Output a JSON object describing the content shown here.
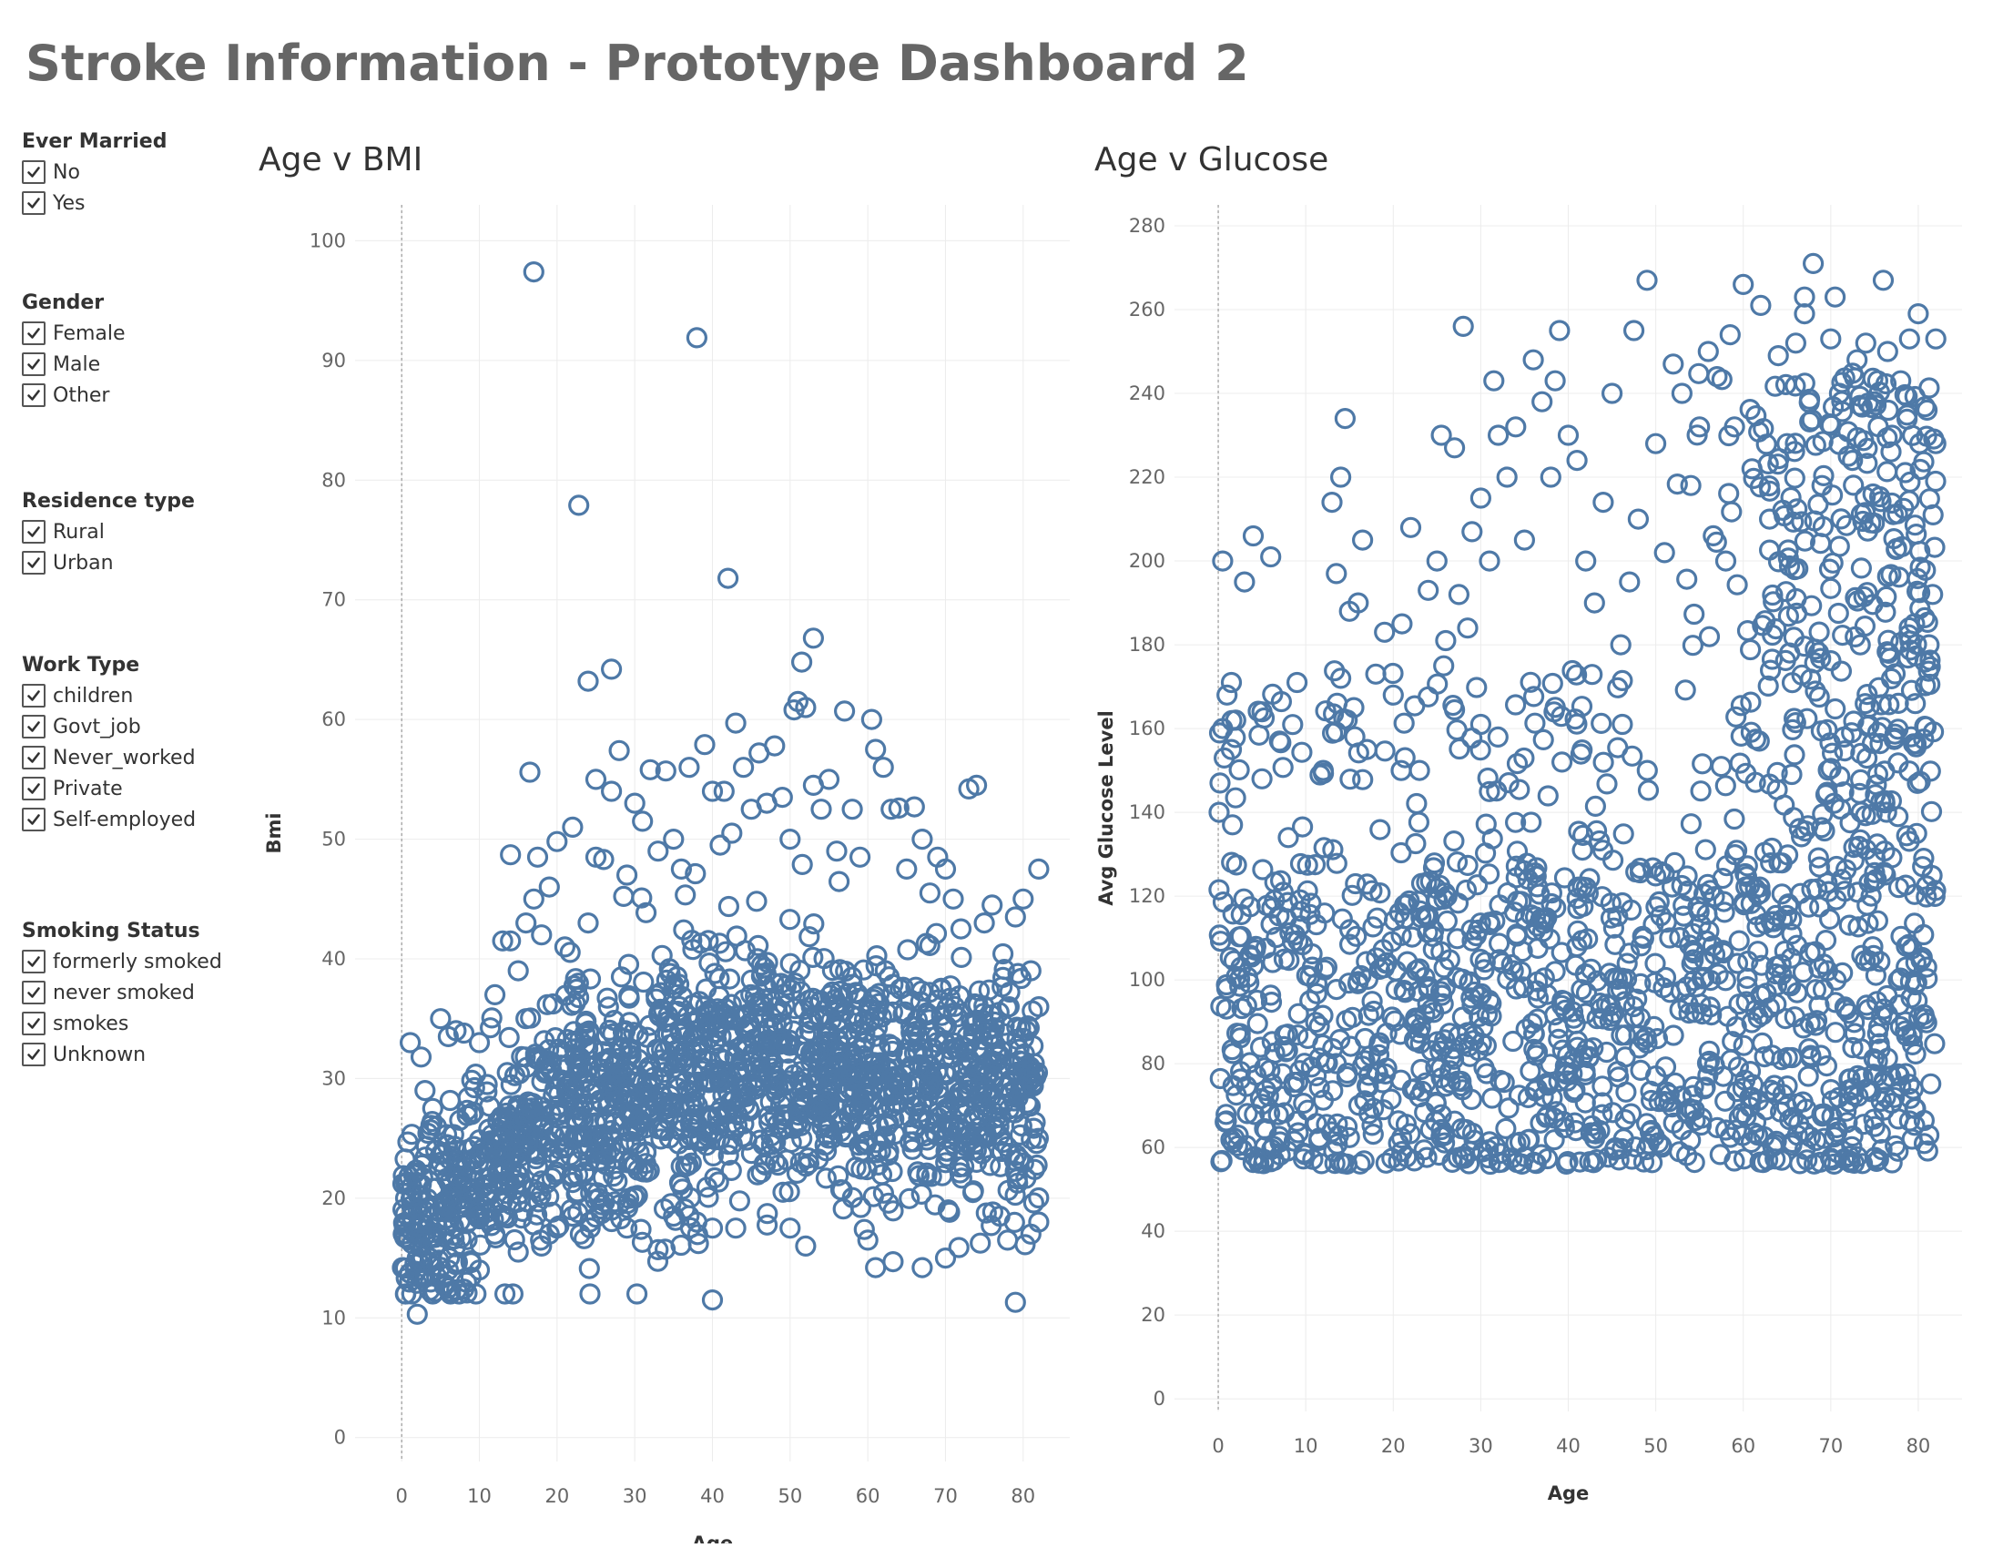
{
  "dashboard": {
    "title": "Stroke Information - Prototype Dashboard 2"
  },
  "colors": {
    "mark": "#4e79a7",
    "grid": "#ececec",
    "zero_line": "#9a9a9a",
    "text": "#333333",
    "axis_text": "#666666",
    "title_text": "#666666"
  },
  "icons": {
    "checkbox": "checkmark-icon"
  },
  "filters": {
    "ever_married": {
      "title": "Ever Married",
      "options": [
        {
          "label": "No",
          "checked": true
        },
        {
          "label": "Yes",
          "checked": true
        }
      ]
    },
    "gender": {
      "title": "Gender",
      "options": [
        {
          "label": "Female",
          "checked": true
        },
        {
          "label": "Male",
          "checked": true
        },
        {
          "label": "Other",
          "checked": true
        }
      ]
    },
    "residence_type": {
      "title": "Residence type",
      "options": [
        {
          "label": "Rural",
          "checked": true
        },
        {
          "label": "Urban",
          "checked": true
        }
      ]
    },
    "work_type": {
      "title": "Work Type",
      "options": [
        {
          "label": "children",
          "checked": true
        },
        {
          "label": "Govt_job",
          "checked": true
        },
        {
          "label": "Never_worked",
          "checked": true
        },
        {
          "label": "Private",
          "checked": true
        },
        {
          "label": "Self-employed",
          "checked": true
        }
      ]
    },
    "smoking_status": {
      "title": "Smoking Status",
      "options": [
        {
          "label": "formerly smoked",
          "checked": true
        },
        {
          "label": "never smoked",
          "checked": true
        },
        {
          "label": "smokes",
          "checked": true
        },
        {
          "label": "Unknown",
          "checked": true
        }
      ]
    }
  },
  "chart_data": [
    {
      "type": "scatter",
      "title": "Age v BMI",
      "xlabel": "Age",
      "ylabel": "Bmi",
      "xlim": [
        -6,
        86
      ],
      "ylim": [
        -2,
        103
      ],
      "xticks": [
        0,
        10,
        20,
        30,
        40,
        50,
        60,
        70,
        80
      ],
      "yticks": [
        0,
        10,
        20,
        30,
        40,
        50,
        60,
        70,
        80,
        90,
        100
      ],
      "grid": true,
      "marker": "hollow circle",
      "points": [
        [
          0.1,
          14.2
        ],
        [
          0.2,
          17.0
        ],
        [
          0.5,
          20.0
        ],
        [
          0.8,
          24.7
        ],
        [
          1.0,
          13.0
        ],
        [
          1.1,
          33.0
        ],
        [
          1.3,
          18.5
        ],
        [
          1.5,
          22.0
        ],
        [
          2.0,
          10.3
        ],
        [
          2.0,
          15.0
        ],
        [
          2.5,
          31.8
        ],
        [
          3.0,
          13.5
        ],
        [
          3.0,
          29.0
        ],
        [
          4.0,
          12.0
        ],
        [
          4.0,
          27.5
        ],
        [
          5.0,
          35.0
        ],
        [
          5.0,
          23.0
        ],
        [
          6.0,
          33.5
        ],
        [
          6.0,
          14.0
        ],
        [
          7.0,
          34.0
        ],
        [
          7.0,
          24.0
        ],
        [
          8.0,
          12.4
        ],
        [
          8.0,
          33.8
        ],
        [
          9.0,
          27.0
        ],
        [
          10.0,
          33.0
        ],
        [
          10.0,
          14.0
        ],
        [
          11.0,
          29.5
        ],
        [
          12.0,
          37.0
        ],
        [
          12.0,
          17.0
        ],
        [
          13.0,
          41.5
        ],
        [
          13.0,
          25.0
        ],
        [
          14.0,
          48.7
        ],
        [
          14.0,
          41.5
        ],
        [
          15.0,
          39.0
        ],
        [
          15.0,
          15.5
        ],
        [
          16.0,
          43.0
        ],
        [
          16.0,
          35.0
        ],
        [
          16.5,
          55.6
        ],
        [
          17.0,
          97.4
        ],
        [
          17.0,
          45.0
        ],
        [
          17.5,
          48.5
        ],
        [
          18.0,
          16.0
        ],
        [
          18.0,
          42.0
        ],
        [
          19.0,
          46.0
        ],
        [
          19.0,
          17.0
        ],
        [
          20.0,
          49.8
        ],
        [
          20.0,
          17.5
        ],
        [
          21.0,
          41.0
        ],
        [
          22.0,
          51.0
        ],
        [
          22.0,
          18.5
        ],
        [
          22.8,
          77.9
        ],
        [
          23.0,
          17.0
        ],
        [
          24.0,
          63.2
        ],
        [
          24.0,
          43.0
        ],
        [
          25.0,
          55.0
        ],
        [
          25.0,
          48.5
        ],
        [
          26.0,
          48.3
        ],
        [
          27.0,
          64.2
        ],
        [
          27.0,
          54.0
        ],
        [
          27.0,
          19.0
        ],
        [
          28.0,
          57.4
        ],
        [
          29.0,
          47.0
        ],
        [
          29.0,
          17.5
        ],
        [
          30.0,
          53.0
        ],
        [
          31.0,
          51.5
        ],
        [
          32.0,
          55.8
        ],
        [
          33.0,
          15.7
        ],
        [
          33.0,
          49.0
        ],
        [
          34.0,
          55.7
        ],
        [
          35.0,
          50.0
        ],
        [
          35.0,
          18.5
        ],
        [
          36.0,
          47.5
        ],
        [
          37.0,
          56.0
        ],
        [
          38.0,
          91.9
        ],
        [
          38.0,
          18.0
        ],
        [
          39.0,
          57.9
        ],
        [
          40.0,
          54.0
        ],
        [
          40.0,
          11.5
        ],
        [
          40.0,
          17.5
        ],
        [
          41.0,
          49.5
        ],
        [
          41.5,
          54.0
        ],
        [
          42.0,
          71.8
        ],
        [
          42.5,
          50.5
        ],
        [
          43.0,
          59.7
        ],
        [
          43.0,
          17.5
        ],
        [
          44.0,
          56.0
        ],
        [
          45.0,
          52.5
        ],
        [
          46.0,
          57.2
        ],
        [
          47.0,
          53.0
        ],
        [
          48.0,
          57.8
        ],
        [
          49.0,
          53.5
        ],
        [
          50.0,
          50.0
        ],
        [
          50.0,
          17.5
        ],
        [
          50.5,
          60.8
        ],
        [
          51.0,
          61.5
        ],
        [
          51.5,
          64.8
        ],
        [
          52.0,
          16.0
        ],
        [
          52.0,
          61.0
        ],
        [
          53.0,
          66.8
        ],
        [
          53.0,
          54.5
        ],
        [
          54.0,
          52.5
        ],
        [
          55.0,
          55.0
        ],
        [
          56.0,
          49.0
        ],
        [
          57.0,
          60.7
        ],
        [
          58.0,
          52.5
        ],
        [
          59.0,
          48.5
        ],
        [
          60.0,
          16.5
        ],
        [
          60.5,
          60.0
        ],
        [
          61.0,
          14.2
        ],
        [
          61.0,
          57.5
        ],
        [
          62.0,
          56.0
        ],
        [
          63.0,
          52.5
        ],
        [
          64.0,
          52.6
        ],
        [
          65.0,
          47.5
        ],
        [
          66.0,
          52.7
        ],
        [
          67.0,
          14.2
        ],
        [
          67.0,
          50.0
        ],
        [
          68.0,
          45.5
        ],
        [
          69.0,
          48.5
        ],
        [
          70.0,
          15.0
        ],
        [
          70.0,
          47.5
        ],
        [
          71.0,
          45.0
        ],
        [
          72.0,
          42.5
        ],
        [
          73.0,
          54.2
        ],
        [
          74.0,
          54.5
        ],
        [
          75.0,
          43.0
        ],
        [
          76.0,
          44.5
        ],
        [
          77.0,
          18.5
        ],
        [
          78.0,
          16.5
        ],
        [
          79.0,
          11.3
        ],
        [
          79.0,
          43.5
        ],
        [
          80.0,
          45.0
        ],
        [
          81.0,
          17.0
        ],
        [
          81.0,
          39.0
        ],
        [
          82.0,
          47.5
        ],
        [
          82.0,
          18.0
        ],
        [
          82.0,
          36.0
        ]
      ],
      "dense_clouds": [
        {
          "x": [
            0.08,
            20
          ],
          "y_center": [
            17.5,
            27
          ],
          "y_spread": 9
        },
        {
          "x": [
            20,
            50
          ],
          "y_center": [
            27,
            32
          ],
          "y_spread": 12
        },
        {
          "x": [
            50,
            82
          ],
          "y_center": [
            31,
            29
          ],
          "y_spread": 11
        }
      ]
    },
    {
      "type": "scatter",
      "title": "Age v Glucose",
      "xlabel": "Age",
      "ylabel": "Avg Glucose Level",
      "xlim": [
        -5,
        85
      ],
      "ylim": [
        -3,
        285
      ],
      "xticks": [
        0,
        10,
        20,
        30,
        40,
        50,
        60,
        70,
        80
      ],
      "yticks": [
        0,
        20,
        40,
        60,
        80,
        100,
        120,
        140,
        160,
        180,
        200,
        220,
        240,
        260,
        280
      ],
      "grid": true,
      "marker": "hollow circle",
      "points": [
        [
          0.1,
          140.0
        ],
        [
          0.2,
          147.0
        ],
        [
          0.5,
          160.0
        ],
        [
          0.5,
          200.0
        ],
        [
          1.0,
          168.0
        ],
        [
          1.5,
          171.0
        ],
        [
          1.5,
          155.0
        ],
        [
          2.0,
          162.0
        ],
        [
          3.0,
          195.0
        ],
        [
          4.0,
          206.0
        ],
        [
          5.0,
          164.0
        ],
        [
          5.0,
          148.0
        ],
        [
          6.0,
          201.0
        ],
        [
          7.0,
          157.0
        ],
        [
          9.0,
          171.0
        ],
        [
          12.0,
          150.0
        ],
        [
          13.0,
          214.0
        ],
        [
          13.5,
          197.0
        ],
        [
          14.0,
          220.0
        ],
        [
          14.0,
          172.0
        ],
        [
          14.5,
          234.0
        ],
        [
          15.0,
          188.0
        ],
        [
          15.5,
          165.0
        ],
        [
          16.0,
          190.0
        ],
        [
          16.5,
          205.0
        ],
        [
          17.0,
          155.0
        ],
        [
          18.0,
          173.0
        ],
        [
          19.0,
          183.0
        ],
        [
          20.0,
          168.0
        ],
        [
          21.0,
          185.0
        ],
        [
          22.0,
          208.0
        ],
        [
          23.0,
          150.0
        ],
        [
          24.0,
          193.0
        ],
        [
          25.0,
          200.0
        ],
        [
          25.5,
          230.0
        ],
        [
          26.0,
          181.0
        ],
        [
          27.0,
          227.0
        ],
        [
          27.5,
          192.0
        ],
        [
          28.0,
          256.0
        ],
        [
          28.5,
          184.0
        ],
        [
          29.0,
          207.0
        ],
        [
          30.0,
          215.0
        ],
        [
          30.0,
          161.0
        ],
        [
          31.0,
          200.0
        ],
        [
          31.5,
          243.0
        ],
        [
          32.0,
          230.0
        ],
        [
          33.0,
          220.0
        ],
        [
          34.0,
          232.0
        ],
        [
          35.0,
          205.0
        ],
        [
          36.0,
          248.0
        ],
        [
          37.0,
          238.0
        ],
        [
          38.0,
          220.0
        ],
        [
          38.5,
          243.0
        ],
        [
          39.0,
          255.0
        ],
        [
          40.0,
          230.0
        ],
        [
          41.0,
          224.0
        ],
        [
          42.0,
          200.0
        ],
        [
          43.0,
          190.0
        ],
        [
          44.0,
          214.0
        ],
        [
          45.0,
          240.0
        ],
        [
          46.0,
          180.0
        ],
        [
          47.0,
          195.0
        ],
        [
          47.5,
          255.0
        ],
        [
          48.0,
          210.0
        ],
        [
          49.0,
          267.0
        ],
        [
          50.0,
          228.0
        ],
        [
          51.0,
          202.0
        ],
        [
          52.0,
          247.0
        ],
        [
          53.0,
          240.0
        ],
        [
          54.0,
          218.0
        ],
        [
          55.0,
          232.0
        ],
        [
          56.0,
          250.0
        ],
        [
          57.0,
          244.0
        ],
        [
          58.0,
          200.0
        ],
        [
          58.5,
          254.0
        ],
        [
          59.0,
          232.0
        ],
        [
          60.0,
          266.0
        ],
        [
          61.0,
          222.0
        ],
        [
          62.0,
          261.0
        ],
        [
          63.0,
          210.0
        ],
        [
          64.0,
          249.0
        ],
        [
          65.0,
          228.0
        ],
        [
          66.0,
          252.0
        ],
        [
          67.0,
          263.0
        ],
        [
          67.0,
          259.0
        ],
        [
          68.0,
          271.0
        ],
        [
          69.0,
          218.0
        ],
        [
          70.0,
          253.0
        ],
        [
          70.5,
          263.0
        ],
        [
          71.0,
          240.0
        ],
        [
          72.0,
          225.0
        ],
        [
          73.0,
          248.0
        ],
        [
          74.0,
          252.0
        ],
        [
          75.0,
          238.0
        ],
        [
          76.0,
          267.0
        ],
        [
          76.5,
          250.0
        ],
        [
          77.0,
          230.0
        ],
        [
          78.0,
          243.0
        ],
        [
          79.0,
          253.0
        ],
        [
          80.0,
          259.0
        ],
        [
          81.0,
          236.0
        ],
        [
          82.0,
          253.0
        ],
        [
          82.0,
          228.0
        ]
      ],
      "dense_clouds": [
        {
          "x": [
            0.08,
            82
          ],
          "y_min": 56,
          "y_max": 128
        },
        {
          "x": [
            0.08,
            50
          ],
          "y_min": 128,
          "y_max": 175,
          "density": "sparse"
        },
        {
          "x": [
            50,
            82
          ],
          "y_min": 128,
          "y_max": 245,
          "density": "medium"
        }
      ]
    }
  ]
}
